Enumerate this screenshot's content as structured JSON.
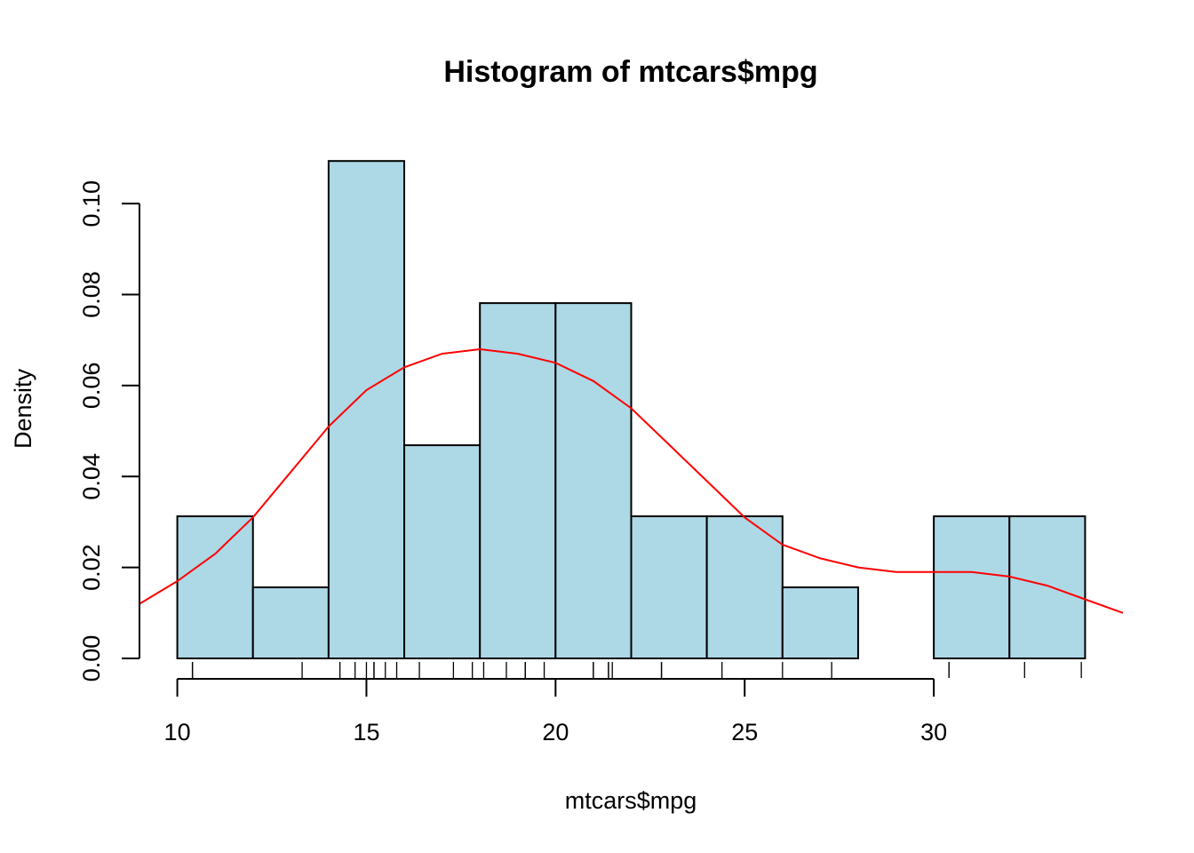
{
  "chart_data": {
    "type": "histogram",
    "title": "Histogram of mtcars$mpg",
    "xlabel": "mtcars$mpg",
    "ylabel": "Density",
    "xlim": [
      9,
      35
    ],
    "ylim": [
      0,
      0.11
    ],
    "x_ticks": [
      10,
      15,
      20,
      25,
      30
    ],
    "x_tick_labels": [
      "10",
      "15",
      "20",
      "25",
      "30"
    ],
    "y_ticks": [
      0.0,
      0.02,
      0.04,
      0.06,
      0.08,
      0.1
    ],
    "y_tick_labels": [
      "0.00",
      "0.02",
      "0.04",
      "0.06",
      "0.08",
      "0.10"
    ],
    "bar_color": "#add8e6",
    "curve_color": "#ff0000",
    "bins": [
      {
        "x0": 10,
        "x1": 12,
        "density": 0.03125
      },
      {
        "x0": 12,
        "x1": 14,
        "density": 0.015625
      },
      {
        "x0": 14,
        "x1": 16,
        "density": 0.109375
      },
      {
        "x0": 16,
        "x1": 18,
        "density": 0.046875
      },
      {
        "x0": 18,
        "x1": 20,
        "density": 0.078125
      },
      {
        "x0": 20,
        "x1": 22,
        "density": 0.078125
      },
      {
        "x0": 22,
        "x1": 24,
        "density": 0.03125
      },
      {
        "x0": 24,
        "x1": 26,
        "density": 0.03125
      },
      {
        "x0": 26,
        "x1": 28,
        "density": 0.015625
      },
      {
        "x0": 28,
        "x1": 30,
        "density": 0.0
      },
      {
        "x0": 30,
        "x1": 32,
        "density": 0.03125
      },
      {
        "x0": 32,
        "x1": 34,
        "density": 0.03125
      }
    ],
    "density_curve": {
      "x": [
        9,
        10,
        11,
        12,
        13,
        14,
        15,
        16,
        17,
        18,
        19,
        20,
        21,
        22,
        23,
        24,
        25,
        26,
        27,
        28,
        29,
        30,
        31,
        32,
        33,
        34,
        35
      ],
      "y": [
        0.012,
        0.017,
        0.023,
        0.031,
        0.041,
        0.051,
        0.059,
        0.064,
        0.067,
        0.068,
        0.067,
        0.065,
        0.061,
        0.055,
        0.047,
        0.039,
        0.031,
        0.025,
        0.022,
        0.02,
        0.019,
        0.019,
        0.019,
        0.018,
        0.016,
        0.013,
        0.01
      ]
    },
    "rug": [
      21.0,
      21.0,
      22.8,
      21.4,
      18.7,
      18.1,
      14.3,
      24.4,
      22.8,
      19.2,
      17.8,
      16.4,
      17.3,
      15.2,
      10.4,
      10.4,
      14.7,
      32.4,
      30.4,
      33.9,
      21.5,
      15.5,
      15.2,
      13.3,
      19.2,
      27.3,
      26.0,
      30.4,
      15.8,
      19.7,
      15.0,
      21.4
    ]
  }
}
